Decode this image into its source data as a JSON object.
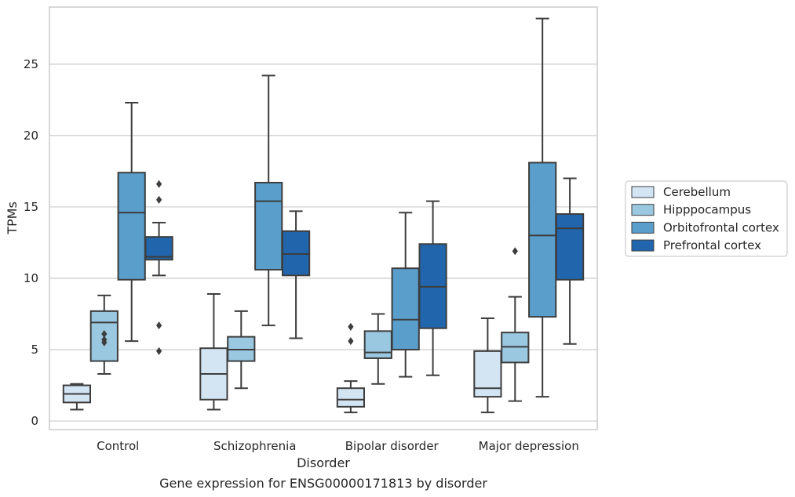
{
  "chart_data": {
    "type": "box",
    "caption": "Gene expression for ENSG00000171813 by disorder",
    "xlabel": "Disorder",
    "ylabel": "TPMs",
    "ylim": [
      -0.6,
      29.0
    ],
    "yticks": [
      0,
      5,
      10,
      15,
      20,
      25
    ],
    "grid": "horizontal",
    "legend_position": "right",
    "categories": [
      "Control",
      "Schizophrenia",
      "Bipolar disorder",
      "Major depression"
    ],
    "series": [
      {
        "name": "Cerebellum",
        "color": "#d3e4f3",
        "boxes": [
          {
            "whisker_low": 0.8,
            "q1": 1.3,
            "median": 1.9,
            "q3": 2.5,
            "whisker_high": 2.6,
            "outliers": []
          },
          {
            "whisker_low": 0.8,
            "q1": 1.5,
            "median": 3.3,
            "q3": 5.1,
            "whisker_high": 8.9,
            "outliers": []
          },
          {
            "whisker_low": 0.6,
            "q1": 1.0,
            "median": 1.5,
            "q3": 2.3,
            "whisker_high": 2.8,
            "outliers": [
              5.6,
              6.6
            ]
          },
          {
            "whisker_low": 0.6,
            "q1": 1.7,
            "median": 2.3,
            "q3": 4.9,
            "whisker_high": 7.2,
            "outliers": []
          }
        ]
      },
      {
        "name": "Hipppocampus",
        "color": "#9ac8e0",
        "boxes": [
          {
            "whisker_low": 3.3,
            "q1": 4.2,
            "median": 6.9,
            "q3": 7.7,
            "whisker_high": 8.8,
            "outliers": [
              5.5,
              5.7,
              6.1
            ]
          },
          {
            "whisker_low": 2.3,
            "q1": 4.2,
            "median": 5.0,
            "q3": 5.9,
            "whisker_high": 7.7,
            "outliers": []
          },
          {
            "whisker_low": 2.6,
            "q1": 4.4,
            "median": 4.8,
            "q3": 6.3,
            "whisker_high": 7.5,
            "outliers": []
          },
          {
            "whisker_low": 1.4,
            "q1": 4.1,
            "median": 5.2,
            "q3": 6.2,
            "whisker_high": 8.7,
            "outliers": [
              11.9
            ]
          }
        ]
      },
      {
        "name": "Orbitofrontal cortex",
        "color": "#5a9ecb",
        "boxes": [
          {
            "whisker_low": 5.6,
            "q1": 9.9,
            "median": 14.6,
            "q3": 17.4,
            "whisker_high": 22.3,
            "outliers": []
          },
          {
            "whisker_low": 6.7,
            "q1": 10.6,
            "median": 15.4,
            "q3": 16.7,
            "whisker_high": 24.2,
            "outliers": []
          },
          {
            "whisker_low": 3.1,
            "q1": 5.0,
            "median": 7.1,
            "q3": 10.7,
            "whisker_high": 14.6,
            "outliers": []
          },
          {
            "whisker_low": 1.7,
            "q1": 7.3,
            "median": 13.0,
            "q3": 18.1,
            "whisker_high": 28.2,
            "outliers": []
          }
        ]
      },
      {
        "name": "Prefrontal cortex",
        "color": "#2166ac",
        "boxes": [
          {
            "whisker_low": 10.2,
            "q1": 11.3,
            "median": 11.5,
            "q3": 12.9,
            "whisker_high": 13.9,
            "outliers": [
              4.9,
              6.7,
              15.5,
              16.6
            ]
          },
          {
            "whisker_low": 5.8,
            "q1": 10.2,
            "median": 11.7,
            "q3": 13.3,
            "whisker_high": 14.7,
            "outliers": []
          },
          {
            "whisker_low": 3.2,
            "q1": 6.5,
            "median": 9.4,
            "q3": 12.4,
            "whisker_high": 15.4,
            "outliers": []
          },
          {
            "whisker_low": 5.4,
            "q1": 9.9,
            "median": 13.5,
            "q3": 14.5,
            "whisker_high": 17.0,
            "outliers": []
          }
        ]
      }
    ]
  }
}
